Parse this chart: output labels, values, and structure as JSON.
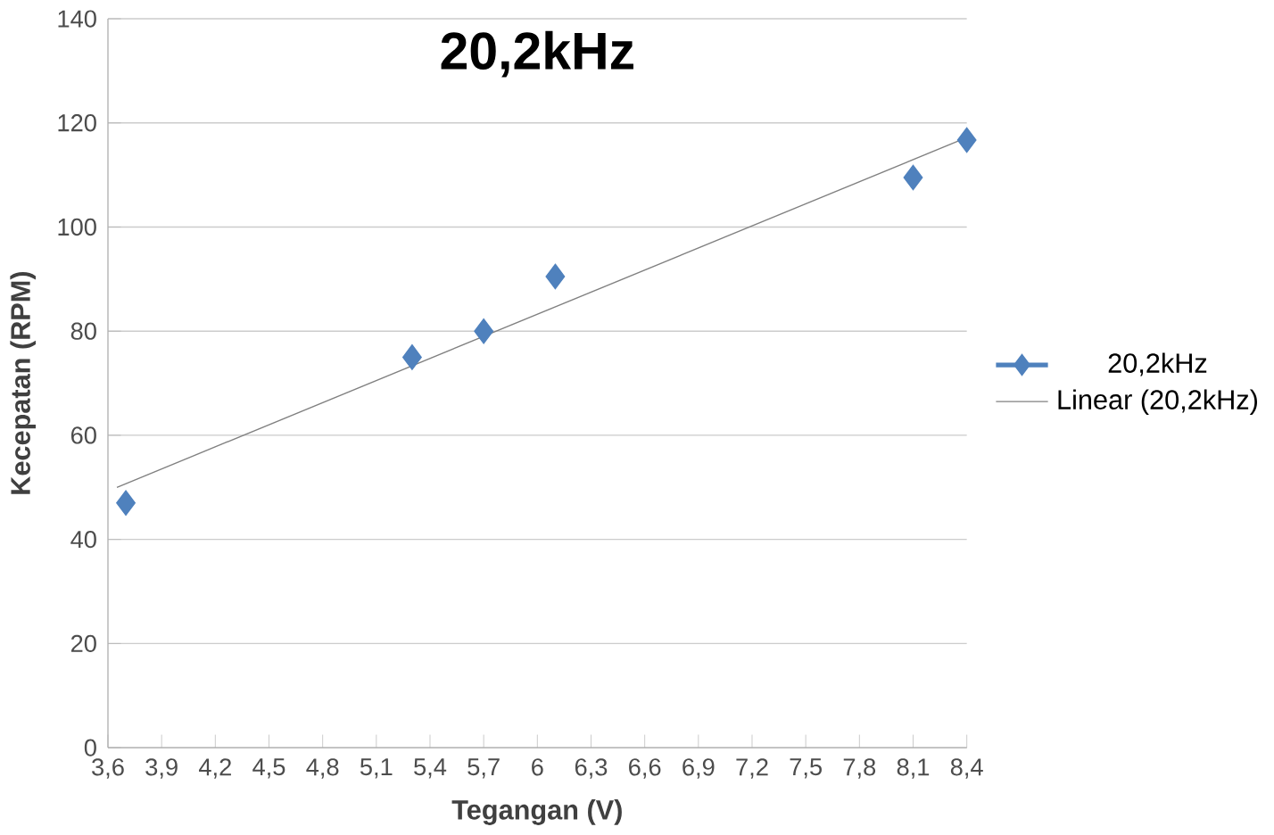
{
  "chart_data": {
    "type": "scatter",
    "title": "20,2kHz",
    "xlabel": "Tegangan (V)",
    "ylabel": "Kecepatan (RPM)",
    "series": [
      {
        "name": "20,2kHz",
        "color": "#4f81bd",
        "marker": "diamond",
        "x": [
          3.7,
          5.3,
          5.7,
          6.1,
          8.1,
          8.4
        ],
        "values": [
          47,
          75,
          80,
          90.5,
          109.5,
          116.7
        ]
      },
      {
        "name": "Linear (20,2kHz)",
        "type": "line",
        "color": "#808080",
        "x": [
          3.65,
          8.4
        ],
        "values": [
          50,
          117.2
        ]
      }
    ],
    "xlim": [
      3.6,
      8.4
    ],
    "ylim": [
      0,
      140
    ],
    "xticks": [
      {
        "value": 3.6,
        "label": "3,6"
      },
      {
        "value": 3.9,
        "label": "3,9"
      },
      {
        "value": 4.2,
        "label": "4,2"
      },
      {
        "value": 4.5,
        "label": "4,5"
      },
      {
        "value": 4.8,
        "label": "4,8"
      },
      {
        "value": 5.1,
        "label": "5,1"
      },
      {
        "value": 5.4,
        "label": "5,4"
      },
      {
        "value": 5.7,
        "label": "5,7"
      },
      {
        "value": 6,
        "label": "6"
      },
      {
        "value": 6.3,
        "label": "6,3"
      },
      {
        "value": 6.6,
        "label": "6,6"
      },
      {
        "value": 6.9,
        "label": "6,9"
      },
      {
        "value": 7.2,
        "label": "7,2"
      },
      {
        "value": 7.5,
        "label": "7,5"
      },
      {
        "value": 7.8,
        "label": "7,8"
      },
      {
        "value": 8.1,
        "label": "8,1"
      },
      {
        "value": 8.4,
        "label": "8,4"
      }
    ],
    "yticks": [
      0,
      20,
      40,
      60,
      80,
      100,
      120,
      140
    ],
    "grid": "y",
    "legend": "right"
  }
}
